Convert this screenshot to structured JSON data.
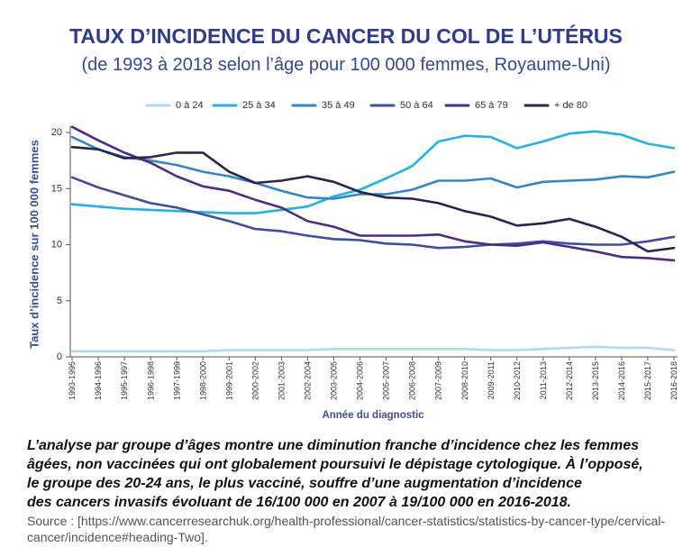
{
  "chart_data": {
    "type": "line",
    "title": "TAUX D’INCIDENCE DU CANCER DU COL DE L’UTÉRUS",
    "subtitle": "(de 1993 à 2018 selon l’âge pour 100 000 femmes, Royaume-Uni)",
    "xlabel": "Année du diagnostic",
    "ylabel": "Taux d’incidence sur 100 000 femmes",
    "ylim": [
      0,
      20
    ],
    "yticks": [
      0,
      5,
      10,
      15,
      20
    ],
    "grid": false,
    "legend_position": "top",
    "x": [
      "1993-1995",
      "1994-1996",
      "1995-1997",
      "1996-1998",
      "1997-1999",
      "1998-2000",
      "1999-2001",
      "2000-2002",
      "2001-2003",
      "2002-2004",
      "2003-2005",
      "2004-2006",
      "2005-2007",
      "2006-2008",
      "2007-2009",
      "2008-2010",
      "2009-2011",
      "2010-2012",
      "2011-2013",
      "2012-2014",
      "2013-2015",
      "2014-2016",
      "2015-2017",
      "2016-2018"
    ],
    "series": [
      {
        "name": "0 à 24",
        "color": "#a9dcf2",
        "values": [
          0.5,
          0.5,
          0.5,
          0.5,
          0.5,
          0.5,
          0.6,
          0.6,
          0.6,
          0.6,
          0.7,
          0.7,
          0.7,
          0.7,
          0.7,
          0.7,
          0.6,
          0.6,
          0.7,
          0.8,
          0.9,
          0.8,
          0.8,
          0.6
        ]
      },
      {
        "name": "25 à 34",
        "color": "#20b2e8",
        "values": [
          13.6,
          13.4,
          13.2,
          13.1,
          13.0,
          12.9,
          12.8,
          12.8,
          13.1,
          13.4,
          14.3,
          14.9,
          15.9,
          17.0,
          19.2,
          19.7,
          19.6,
          18.6,
          19.2,
          19.9,
          20.1,
          19.8,
          19.0,
          18.6
        ]
      },
      {
        "name": "35 à 49",
        "color": "#3186c9",
        "values": [
          19.6,
          18.5,
          17.8,
          17.5,
          17.1,
          16.5,
          16.1,
          15.5,
          14.8,
          14.2,
          14.1,
          14.5,
          14.5,
          14.9,
          15.7,
          15.7,
          15.9,
          15.1,
          15.6,
          15.7,
          15.8,
          16.1,
          16.0,
          16.5
        ]
      },
      {
        "name": "50 à 64",
        "color": "#3b4ea3",
        "values": [
          16.0,
          15.1,
          14.4,
          13.7,
          13.3,
          12.7,
          12.1,
          11.4,
          11.2,
          10.8,
          10.5,
          10.4,
          10.1,
          10.0,
          9.7,
          9.8,
          10.0,
          10.1,
          10.3,
          10.1,
          10.0,
          10.0,
          10.3,
          10.7
        ]
      },
      {
        "name": "65 à 79",
        "color": "#4b2b8c",
        "values": [
          20.5,
          19.3,
          18.2,
          17.3,
          16.1,
          15.2,
          14.8,
          14.0,
          13.3,
          12.1,
          11.6,
          10.8,
          10.8,
          10.8,
          10.9,
          10.3,
          10.0,
          9.9,
          10.2,
          9.8,
          9.4,
          8.9,
          8.8,
          8.6
        ]
      },
      {
        "name": "+ de 80",
        "color": "#272450",
        "values": [
          18.7,
          18.5,
          17.7,
          17.8,
          18.2,
          18.2,
          16.5,
          15.5,
          15.7,
          16.1,
          15.6,
          14.7,
          14.2,
          14.1,
          13.7,
          13.0,
          12.5,
          11.7,
          11.9,
          12.3,
          11.6,
          10.7,
          9.4,
          9.7
        ]
      }
    ]
  },
  "caption": {
    "lines": [
      "L’analyse par groupe d’âges montre une diminution franche d’incidence chez les femmes",
      "âgées, non vaccinées qui ont globalement poursuivi le dépistage cytologique. À l’opposé,",
      "le groupe des 20-24 ans, le plus vacciné, souffre d’une augmentation d’incidence",
      "des cancers invasifs évoluant de 16/100 000 en 2007 à 19/100 000 en 2016-2018."
    ]
  },
  "source": {
    "lines": [
      "Source : [https://www.cancerresearchuk.org/health-professional/cancer-statistics/statistics-by-cancer-type/cervical-",
      "cancer/incidence#heading-Two]."
    ]
  }
}
